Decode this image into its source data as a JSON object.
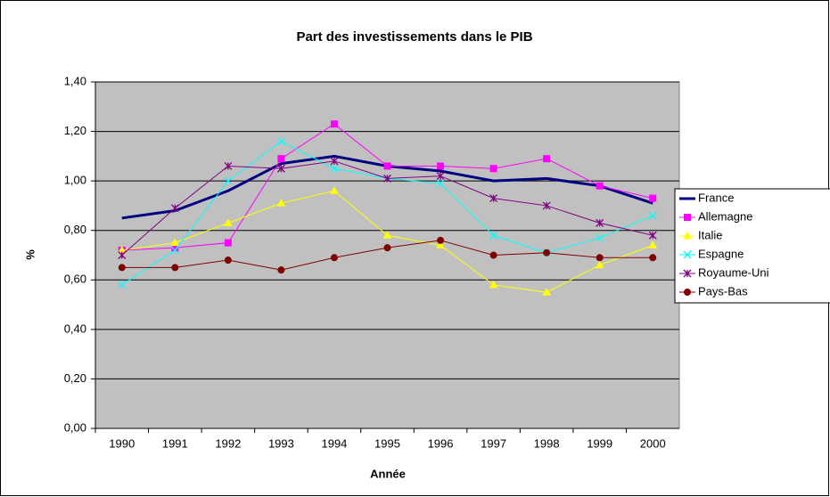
{
  "chart_data": {
    "type": "line",
    "title": "Part des investissements dans le PIB",
    "x_label": "Année",
    "y_label": "%",
    "categories": [
      "1990",
      "1991",
      "1992",
      "1993",
      "1994",
      "1995",
      "1996",
      "1997",
      "1998",
      "1999",
      "2000"
    ],
    "ylim": [
      0,
      1.4
    ],
    "yticks": [
      {
        "value": 0,
        "label": "0,00"
      },
      {
        "value": 0.2,
        "label": "0,20"
      },
      {
        "value": 0.4,
        "label": "0,40"
      },
      {
        "value": 0.6,
        "label": "0,60"
      },
      {
        "value": 0.8,
        "label": "0,80"
      },
      {
        "value": 1.0,
        "label": "1,00"
      },
      {
        "value": 1.2,
        "label": "1,20"
      },
      {
        "value": 1.4,
        "label": "1,40"
      }
    ],
    "grid": true,
    "legend": "right",
    "series": [
      {
        "name": "France",
        "color": "#000080",
        "marker": "none",
        "values": [
          0.85,
          0.88,
          0.96,
          1.07,
          1.1,
          1.06,
          1.04,
          1.0,
          1.01,
          0.98,
          0.91
        ]
      },
      {
        "name": "Allemagne",
        "color": "#ff00ff",
        "marker": "square",
        "values": [
          0.72,
          0.73,
          0.75,
          1.09,
          1.23,
          1.06,
          1.06,
          1.05,
          1.09,
          0.98,
          0.93
        ]
      },
      {
        "name": "Italie",
        "color": "#ffff00",
        "marker": "triangle",
        "values": [
          0.72,
          0.75,
          0.83,
          0.91,
          0.96,
          0.78,
          0.74,
          0.58,
          0.55,
          0.66,
          0.74
        ]
      },
      {
        "name": "Espagne",
        "color": "#00ffff",
        "marker": "x",
        "values": [
          0.58,
          0.72,
          1.0,
          1.16,
          1.05,
          1.01,
          0.99,
          0.78,
          0.71,
          0.77,
          0.86
        ]
      },
      {
        "name": "Royaume-Uni",
        "color": "#800080",
        "marker": "star",
        "values": [
          0.7,
          0.89,
          1.06,
          1.05,
          1.08,
          1.01,
          1.02,
          0.93,
          0.9,
          0.83,
          0.78
        ]
      },
      {
        "name": "Pays-Bas",
        "color": "#800000",
        "marker": "circle",
        "values": [
          0.65,
          0.65,
          0.68,
          0.64,
          0.69,
          0.73,
          0.76,
          0.7,
          0.71,
          0.69,
          0.69
        ]
      }
    ]
  }
}
